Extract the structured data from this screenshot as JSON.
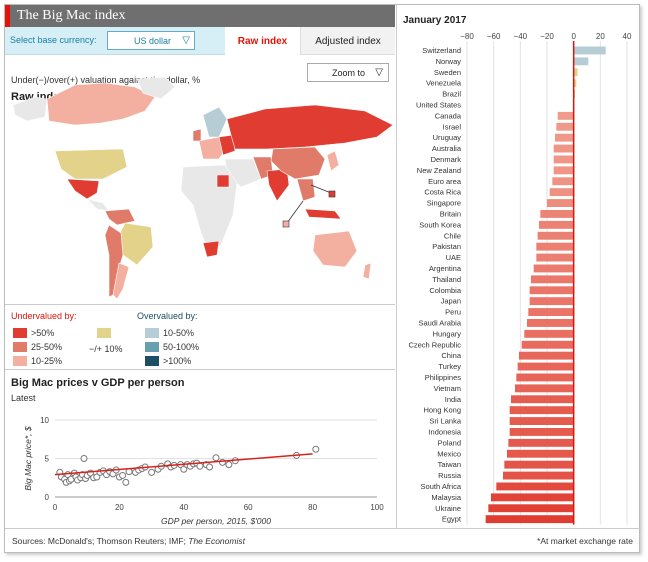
{
  "header": {
    "title": "The Big Mac index"
  },
  "controls": {
    "base_label": "Select base currency:",
    "base_value": "US dollar",
    "tabs": [
      "Raw index",
      "Adjusted index"
    ]
  },
  "map_panel": {
    "subtitle": "Under(−)/over(+) valuation against the dollar, %",
    "zoom_label": "Zoom to",
    "heading": "Raw index"
  },
  "legend": {
    "under_title": "Undervalued by:",
    "over_title": "Overvalued by:",
    "under_items": [
      {
        "label": ">50%",
        "color": "#e03c31"
      },
      {
        "label": "25-50%",
        "color": "#e07b6a"
      },
      {
        "label": "10-25%",
        "color": "#f3b0a0"
      }
    ],
    "neutral": {
      "label": "−/+ 10%",
      "color": "#e3d28a"
    },
    "over_items": [
      {
        "label": "10-50%",
        "color": "#b7cdd6"
      },
      {
        "label": "50-100%",
        "color": "#6a9fb0"
      },
      {
        "label": ">100%",
        "color": "#1d4e63"
      }
    ]
  },
  "scatter": {
    "heading": "Big Mac prices v GDP per person",
    "sub": "Latest"
  },
  "footer": {
    "sources_prefix": "Sources: McDonald's; Thomson Reuters; IMF; ",
    "sources_italic": "The Economist",
    "note": "*At market exchange rate"
  },
  "colors": {
    "accent": "#e3120b",
    "bar_strong": "#e03c31",
    "bar_light": "#f3b0a0",
    "bar_over": "#b7cdd6",
    "scatter_line": "#d7231b"
  },
  "chart_data": [
    {
      "type": "bar",
      "title": "January 2017",
      "orientation": "horizontal",
      "xlim": [
        -80,
        40
      ],
      "xticks": [
        -80,
        -60,
        -40,
        -20,
        0,
        20,
        40
      ],
      "categories": [
        "Switzerland",
        "Norway",
        "Sweden",
        "Venezuela",
        "Brazil",
        "United States",
        "Canada",
        "Israel",
        "Uruguay",
        "Australia",
        "Denmark",
        "New Zealand",
        "Euro area",
        "Costa Rica",
        "Singapore",
        "Britain",
        "South Korea",
        "Chile",
        "Pakistan",
        "UAE",
        "Argentina",
        "Thailand",
        "Colombia",
        "Japan",
        "Peru",
        "Saudi Arabia",
        "Hungary",
        "Czech Republic",
        "China",
        "Turkey",
        "Philippines",
        "Vietnam",
        "India",
        "Hong Kong",
        "Sri Lanka",
        "Indonesia",
        "Poland",
        "Mexico",
        "Taiwan",
        "Russia",
        "South Africa",
        "Malaysia",
        "Ukraine",
        "Egypt"
      ],
      "values": [
        24,
        11,
        3,
        2,
        1,
        0,
        -12,
        -13,
        -14,
        -15,
        -15,
        -15,
        -16,
        -18,
        -20,
        -25,
        -26,
        -27,
        -28,
        -28,
        -30,
        -32,
        -33,
        -33,
        -34,
        -35,
        -37,
        -39,
        -41,
        -42,
        -43,
        -44,
        -47,
        -48,
        -48,
        -48,
        -49,
        -50,
        -52,
        -53,
        -58,
        -62,
        -64,
        -66
      ]
    },
    {
      "type": "scatter",
      "title": "Big Mac prices v GDP per person",
      "xlabel": "GDP per person, 2015, $'000",
      "ylabel": "Big Mac price*, $",
      "xlim": [
        0,
        100
      ],
      "ylim": [
        0,
        10
      ],
      "xticks": [
        0,
        20,
        40,
        60,
        80,
        100
      ],
      "yticks": [
        0,
        5,
        10
      ],
      "points": [
        [
          1.5,
          3.2
        ],
        [
          2,
          2.6
        ],
        [
          3,
          2.3
        ],
        [
          3.5,
          1.9
        ],
        [
          4,
          2.9
        ],
        [
          4.5,
          2.1
        ],
        [
          5,
          2.3
        ],
        [
          6,
          3.1
        ],
        [
          6.5,
          2.6
        ],
        [
          7,
          2.2
        ],
        [
          8,
          2.5
        ],
        [
          8.5,
          2.9
        ],
        [
          9,
          5.0
        ],
        [
          9.5,
          2.4
        ],
        [
          10,
          2.8
        ],
        [
          11,
          3.1
        ],
        [
          12,
          2.5
        ],
        [
          13,
          2.6
        ],
        [
          14,
          3.2
        ],
        [
          15,
          3.4
        ],
        [
          16,
          2.9
        ],
        [
          17,
          3.3
        ],
        [
          18,
          3.0
        ],
        [
          19,
          3.5
        ],
        [
          20,
          2.6
        ],
        [
          21,
          2.8
        ],
        [
          22,
          1.9
        ],
        [
          23,
          3.3
        ],
        [
          25,
          3.2
        ],
        [
          26,
          3.5
        ],
        [
          27,
          3.7
        ],
        [
          28,
          3.9
        ],
        [
          30,
          3.2
        ],
        [
          32,
          3.6
        ],
        [
          33,
          4.0
        ],
        [
          35,
          4.3
        ],
        [
          36,
          3.9
        ],
        [
          37,
          4.1
        ],
        [
          39,
          4.2
        ],
        [
          40,
          3.6
        ],
        [
          41,
          4.2
        ],
        [
          42,
          4.0
        ],
        [
          43,
          4.3
        ],
        [
          44,
          4.4
        ],
        [
          45,
          4.0
        ],
        [
          47,
          4.2
        ],
        [
          48,
          3.9
        ],
        [
          50,
          5.1
        ],
        [
          52,
          4.5
        ],
        [
          54,
          4.2
        ],
        [
          56,
          4.7
        ],
        [
          75,
          5.4
        ],
        [
          81,
          6.2
        ]
      ],
      "trend": [
        [
          0,
          2.9
        ],
        [
          80,
          5.6
        ]
      ]
    }
  ]
}
